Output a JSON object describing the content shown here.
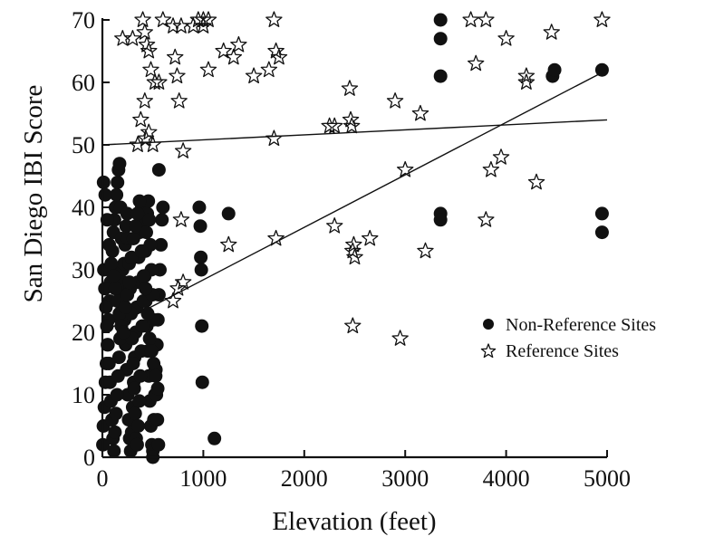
{
  "chart_data": {
    "type": "scatter",
    "title": "",
    "xlabel": "Elevation (feet)",
    "ylabel": "San Diego IBI Score",
    "xlim": [
      0,
      5000
    ],
    "ylim": [
      0,
      70
    ],
    "xticks": [
      0,
      1000,
      2000,
      3000,
      4000,
      5000
    ],
    "yticks": [
      0,
      10,
      20,
      30,
      40,
      50,
      60,
      70
    ],
    "grid": false,
    "legend_position": "right",
    "colors": {
      "ink": "#111111"
    },
    "series": [
      {
        "name": "Non-Reference Sites",
        "marker": "circle",
        "x": [
          5,
          10,
          20,
          30,
          40,
          50,
          60,
          70,
          80,
          90,
          100,
          110,
          120,
          130,
          140,
          150,
          160,
          170,
          180,
          190,
          200,
          210,
          220,
          230,
          240,
          250,
          260,
          270,
          280,
          290,
          300,
          310,
          320,
          330,
          340,
          350,
          360,
          370,
          380,
          390,
          400,
          410,
          420,
          430,
          440,
          450,
          460,
          470,
          480,
          490,
          500,
          510,
          520,
          530,
          540,
          550,
          560,
          570,
          580,
          590,
          600,
          15,
          25,
          35,
          45,
          55,
          65,
          75,
          85,
          95,
          105,
          115,
          125,
          135,
          145,
          155,
          165,
          175,
          185,
          195,
          205,
          215,
          225,
          235,
          245,
          255,
          265,
          275,
          285,
          295,
          305,
          315,
          325,
          335,
          345,
          355,
          365,
          375,
          385,
          395,
          405,
          415,
          425,
          435,
          445,
          455,
          465,
          475,
          485,
          495,
          505,
          515,
          525,
          535,
          545,
          555,
          12,
          28,
          48,
          68,
          88,
          108,
          128,
          148,
          168,
          188,
          208,
          228,
          248,
          268,
          288,
          308,
          328,
          348,
          368,
          388,
          408,
          428,
          448,
          468,
          488,
          508,
          528,
          548,
          960,
          970,
          975,
          980,
          985,
          990,
          1110,
          1250,
          3350,
          3350,
          3350,
          3350,
          3350,
          4460,
          4480,
          4950,
          4950,
          4950,
          500,
          560
        ],
        "y": [
          2,
          5,
          8,
          12,
          15,
          18,
          22,
          25,
          28,
          30,
          33,
          36,
          38,
          40,
          42,
          44,
          46,
          47,
          40,
          35,
          30,
          26,
          22,
          18,
          14,
          10,
          6,
          3,
          1,
          4,
          8,
          12,
          16,
          20,
          24,
          28,
          32,
          36,
          38,
          40,
          37,
          33,
          29,
          25,
          21,
          17,
          13,
          9,
          5,
          2,
          1,
          6,
          10,
          14,
          18,
          22,
          26,
          30,
          34,
          38,
          40,
          30,
          27,
          24,
          21,
          18,
          15,
          12,
          9,
          6,
          3,
          1,
          4,
          7,
          10,
          13,
          16,
          19,
          22,
          25,
          28,
          31,
          34,
          37,
          39,
          35,
          31,
          27,
          23,
          19,
          15,
          11,
          7,
          3,
          2,
          5,
          9,
          13,
          17,
          21,
          25,
          29,
          33,
          36,
          39,
          41,
          38,
          34,
          30,
          26,
          22,
          18,
          14,
          10,
          6,
          2,
          44,
          42,
          38,
          34,
          31,
          29,
          27,
          25,
          23,
          21,
          20,
          24,
          26,
          28,
          32,
          35,
          37,
          39,
          41,
          33,
          29,
          27,
          23,
          19,
          17,
          15,
          13,
          11,
          40,
          37,
          32,
          30,
          21,
          12,
          3,
          39,
          70,
          67,
          61,
          39,
          38,
          61,
          62,
          62,
          39,
          36,
          0,
          46
        ]
      },
      {
        "name": "Reference Sites",
        "marker": "star",
        "x": [
          200,
          300,
          400,
          420,
          440,
          460,
          480,
          520,
          560,
          600,
          700,
          720,
          740,
          760,
          780,
          800,
          900,
          950,
          1000,
          1050,
          1200,
          1250,
          1300,
          1350,
          1500,
          1650,
          1700,
          1720,
          1750,
          2250,
          2300,
          2450,
          2460,
          2470,
          2480,
          2490,
          2500,
          2650,
          2900,
          2950,
          3000,
          3150,
          3200,
          3650,
          3700,
          3800,
          3850,
          3950,
          4000,
          4200,
          4300,
          4450,
          4950,
          350,
          380,
          420,
          430,
          460,
          500,
          700,
          750,
          780,
          800,
          1000,
          1050,
          1700,
          1720,
          2300,
          2480,
          3800,
          4200
        ],
        "y": [
          67,
          67,
          70,
          68,
          66,
          65,
          62,
          60,
          60,
          70,
          69,
          64,
          61,
          57,
          69,
          49,
          69,
          70,
          69,
          62,
          65,
          34,
          64,
          66,
          61,
          62,
          70,
          35,
          64,
          53,
          37,
          59,
          54,
          53,
          33,
          34,
          32,
          35,
          57,
          19,
          46,
          55,
          33,
          70,
          63,
          70,
          46,
          48,
          67,
          61,
          44,
          68,
          70,
          50,
          54,
          57,
          51,
          52,
          50,
          25,
          27,
          38,
          28,
          70,
          70,
          51,
          65,
          53,
          21,
          38,
          60
        ]
      }
    ],
    "fit_lines": [
      {
        "of": "Reference Sites",
        "x": [
          0,
          5000
        ],
        "y": [
          50,
          54
        ]
      },
      {
        "of": "Non-Reference Sites",
        "x": [
          0,
          5000
        ],
        "y": [
          20,
          62
        ]
      }
    ]
  }
}
